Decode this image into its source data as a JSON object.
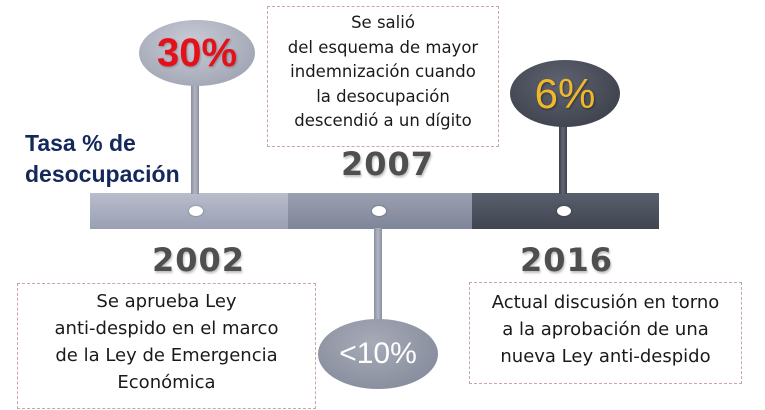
{
  "label": {
    "line1": "Tasa % de",
    "line2": "desocupación"
  },
  "milestones": [
    {
      "year": "2002",
      "rate": "30%",
      "rate_color": "#e4111a",
      "note": [
        "Se aprueba Ley",
        "anti-despido en el marco",
        "de la Ley de Emergencia",
        "Económica"
      ]
    },
    {
      "year": "2007",
      "rate": "<10%",
      "rate_color": "#ffffff",
      "note": [
        "Se salió",
        "del esquema de mayor",
        "indemnización cuando",
        "la desocupación",
        "descendió a un dígito"
      ]
    },
    {
      "year": "2016",
      "rate": "6%",
      "rate_color": "#f1b82a",
      "note": [
        "Actual discusión en torno",
        "a la aprobación de una",
        "nueva Ley anti-despido"
      ]
    }
  ],
  "colors": {
    "label": "#14285a",
    "year": "#4f4f4f",
    "segment_2002": "#a6abbd",
    "segment_2007": "#8a90a2",
    "segment_2016": "#4a4f5c"
  }
}
